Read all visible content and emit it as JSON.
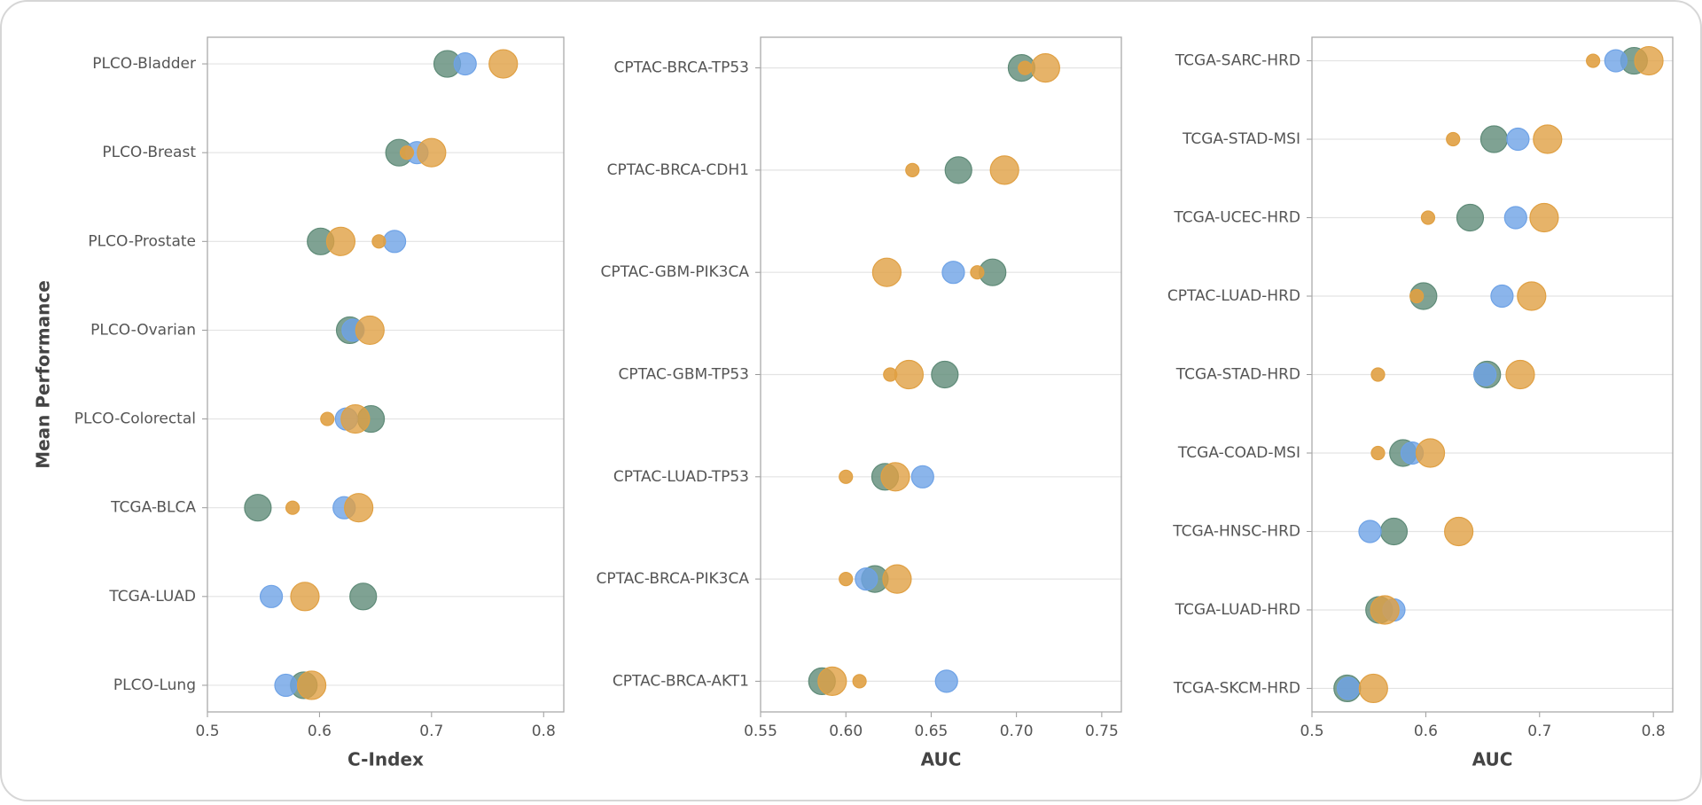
{
  "chart_data": [
    {
      "type": "dot",
      "xlabel": "C-Index",
      "ylabel": "Mean Performance",
      "categories": [
        "PLCO-Bladder",
        "PLCO-Breast",
        "PLCO-Prostate",
        "PLCO-Ovarian",
        "PLCO-Colorectal",
        "TCGA-BLCA",
        "TCGA-LUAD",
        "PLCO-Lung"
      ],
      "series": [
        {
          "color": "#5f8b78",
          "values": [
            0.714,
            0.671,
            0.601,
            0.627,
            0.646,
            0.545,
            0.639,
            0.586
          ]
        },
        {
          "color": "#6ea2e6",
          "values": [
            0.73,
            0.687,
            0.667,
            0.63,
            0.624,
            0.622,
            0.557,
            0.57
          ]
        },
        {
          "color": "#e0a043",
          "values": [
            0.764,
            0.7,
            0.619,
            0.645,
            0.632,
            0.635,
            0.587,
            0.593
          ]
        },
        {
          "color": "#e0a043",
          "values": [
            null,
            0.678,
            0.653,
            null,
            0.607,
            0.576,
            null,
            null
          ]
        }
      ],
      "xlim": [
        0.5,
        0.818
      ],
      "xticks": [
        0.5,
        0.6,
        0.7,
        0.8
      ],
      "grid": true
    },
    {
      "type": "dot",
      "xlabel": "AUC",
      "categories": [
        "CPTAC-BRCA-TP53",
        "CPTAC-BRCA-CDH1",
        "CPTAC-GBM-PIK3CA",
        "CPTAC-GBM-TP53",
        "CPTAC-LUAD-TP53",
        "CPTAC-BRCA-PIK3CA",
        "CPTAC-BRCA-AKT1"
      ],
      "series": [
        {
          "color": "#5f8b78",
          "values": [
            0.703,
            0.666,
            0.686,
            0.658,
            0.623,
            0.617,
            0.586
          ]
        },
        {
          "color": "#6ea2e6",
          "values": [
            null,
            null,
            0.663,
            null,
            0.645,
            0.612,
            0.659
          ]
        },
        {
          "color": "#e0a043",
          "values": [
            0.717,
            0.693,
            0.624,
            0.637,
            0.629,
            0.63,
            0.592
          ]
        },
        {
          "color": "#e0a043",
          "values": [
            0.705,
            0.639,
            0.677,
            0.626,
            0.6,
            0.6,
            0.608
          ]
        }
      ],
      "xlim": [
        0.55,
        0.7615
      ],
      "xticks": [
        0.55,
        {
          "value": 0.6,
          "label": "0.60"
        },
        0.65,
        {
          "value": 0.7,
          "label": "0.70"
        },
        0.75
      ],
      "grid": true
    },
    {
      "type": "dot",
      "xlabel": "AUC",
      "categories": [
        "TCGA-SARC-HRD",
        "TCGA-STAD-MSI",
        "TCGA-UCEC-HRD",
        "CPTAC-LUAD-HRD",
        "TCGA-STAD-HRD",
        "TCGA-COAD-MSI",
        "TCGA-HNSC-HRD",
        "TCGA-LUAD-HRD",
        "TCGA-SKCM-HRD"
      ],
      "series": [
        {
          "color": "#5f8b78",
          "values": [
            0.783,
            0.66,
            0.639,
            0.598,
            0.654,
            0.58,
            0.572,
            0.559,
            0.531
          ]
        },
        {
          "color": "#6ea2e6",
          "values": [
            0.767,
            0.681,
            0.679,
            0.667,
            0.652,
            0.588,
            0.551,
            0.572,
            0.532
          ]
        },
        {
          "color": "#e0a043",
          "values": [
            0.796,
            0.707,
            0.704,
            0.693,
            0.683,
            0.604,
            0.629,
            0.564,
            0.554
          ]
        },
        {
          "color": "#e0a043",
          "values": [
            0.747,
            0.624,
            0.602,
            0.592,
            0.558,
            0.558,
            null,
            null,
            null
          ]
        }
      ],
      "xlim": [
        0.5,
        0.817
      ],
      "xticks": [
        0.5,
        0.6,
        0.7,
        0.8
      ],
      "grid": true
    }
  ]
}
